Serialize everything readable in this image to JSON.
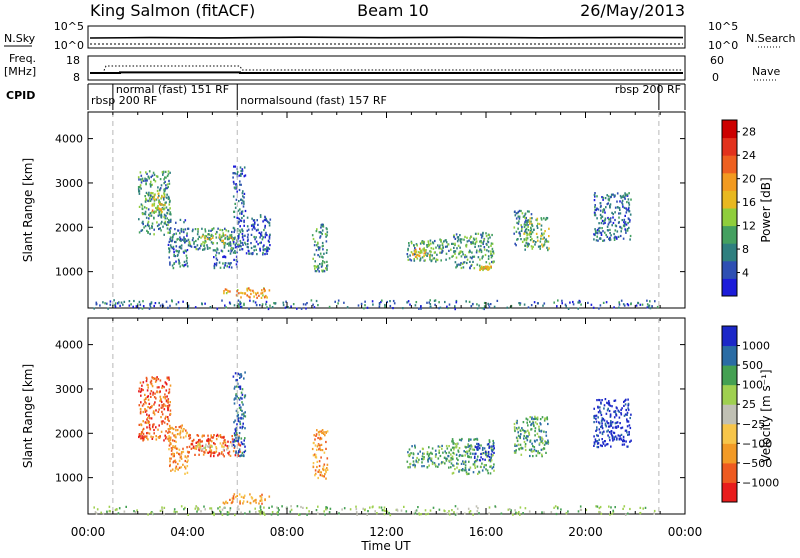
{
  "header": {
    "station": "King Salmon (fitACF)",
    "beam": "Beam 10",
    "date": "26/May/2013"
  },
  "top_panels": {
    "nsky_label": "N.Sky",
    "nsky_ticks": [
      "10^5",
      "10^0"
    ],
    "nsearch_label": "N.Search",
    "nsearch_ticks": [
      "10^5",
      "10^0"
    ],
    "freq_label_1": "Freq.",
    "freq_label_2": "[MHz]",
    "freq_ticks": [
      "18",
      "8"
    ],
    "nave_label": "Nave",
    "nave_ticks": [
      "60",
      "0"
    ],
    "cpid_label": "CPID",
    "cpid_segments": [
      {
        "label": "rbsp 200 RF",
        "start_h": 0.0,
        "end_h": 1.0,
        "row": 1
      },
      {
        "label": "normal (fast) 151 RF",
        "start_h": 1.0,
        "end_h": 6.0,
        "row": 0
      },
      {
        "label": "normalsound (fast) 157 RF",
        "start_h": 6.0,
        "end_h": 22.95,
        "row": 1
      },
      {
        "label": "rbsp 200 RF",
        "start_h": 22.95,
        "end_h": 24.0,
        "row": 0,
        "align": "right"
      }
    ]
  },
  "chart_data": [
    {
      "type": "heatmap",
      "title": "",
      "xlabel": "",
      "ylabel": "Slant Range [km]",
      "xlim": [
        0,
        24
      ],
      "ylim": [
        180,
        4600
      ],
      "y_ticks": [
        1000,
        2000,
        3000,
        4000
      ],
      "colorbar_label": "Power [dB]",
      "colorbar_ticks": [
        "4",
        "8",
        "12",
        "16",
        "20",
        "24",
        "28"
      ],
      "colorbar_range": [
        0,
        30
      ],
      "colors": [
        "#1c1cd9",
        "#2e4fb3",
        "#2f7f7f",
        "#44a060",
        "#8fce3c",
        "#e8b820",
        "#f29a20",
        "#ee6020",
        "#e2321d",
        "#cc0000"
      ],
      "echo_regions": [
        {
          "t": [
            2.0,
            3.3
          ],
          "r": [
            1850,
            3300
          ],
          "v": 9
        },
        {
          "t": [
            2.5,
            3.1
          ],
          "r": [
            2300,
            2800
          ],
          "v": 17
        },
        {
          "t": [
            3.2,
            4.0
          ],
          "r": [
            1100,
            2200
          ],
          "v": 7
        },
        {
          "t": [
            4.0,
            6.1
          ],
          "r": [
            1500,
            2000
          ],
          "v": 9
        },
        {
          "t": [
            4.5,
            5.8
          ],
          "r": [
            1650,
            1850
          ],
          "v": 15
        },
        {
          "t": [
            5.0,
            6.0
          ],
          "r": [
            1100,
            1500
          ],
          "v": 6
        },
        {
          "t": [
            5.4,
            7.3
          ],
          "r": [
            430,
            650
          ],
          "v": 19
        },
        {
          "t": [
            5.8,
            6.3
          ],
          "r": [
            1500,
            3400
          ],
          "v": 5
        },
        {
          "t": [
            6.3,
            7.3
          ],
          "r": [
            1400,
            2300
          ],
          "v": 5
        },
        {
          "t": [
            9.0,
            9.6
          ],
          "r": [
            1000,
            2100
          ],
          "v": 9
        },
        {
          "t": [
            12.8,
            14.6
          ],
          "r": [
            1250,
            1750
          ],
          "v": 10
        },
        {
          "t": [
            13.0,
            13.8
          ],
          "r": [
            1350,
            1550
          ],
          "v": 17
        },
        {
          "t": [
            14.6,
            16.3
          ],
          "r": [
            1100,
            1900
          ],
          "v": 9
        },
        {
          "t": [
            15.7,
            16.2
          ],
          "r": [
            1050,
            1150
          ],
          "v": 18
        },
        {
          "t": [
            17.1,
            17.8
          ],
          "r": [
            1600,
            2400
          ],
          "v": 8
        },
        {
          "t": [
            17.5,
            18.5
          ],
          "r": [
            1500,
            2250
          ],
          "v": 12
        },
        {
          "t": [
            20.3,
            21.8
          ],
          "r": [
            1700,
            2800
          ],
          "v": 6
        },
        {
          "t": [
            0.2,
            22.9
          ],
          "r": [
            180,
            380
          ],
          "v": 6
        }
      ]
    },
    {
      "type": "heatmap",
      "title": "",
      "xlabel": "Time UT",
      "ylabel": "Slant Range [km]",
      "x_ticks": [
        "00:00",
        "04:00",
        "08:00",
        "12:00",
        "16:00",
        "20:00",
        "00:00"
      ],
      "xlim": [
        0,
        24
      ],
      "ylim": [
        180,
        4600
      ],
      "y_ticks": [
        1000,
        2000,
        3000,
        4000
      ],
      "colorbar_label": "Velocity [m s⁻¹]",
      "colorbar_ticks": [
        "1000",
        "500",
        "100",
        "25",
        "−25",
        "−100",
        "−500",
        "−1000"
      ],
      "colors": [
        "#e81c1c",
        "#ee5a20",
        "#f29a26",
        "#f7c54a",
        "#c0c0b4",
        "#9fd050",
        "#44a052",
        "#2a6ca4",
        "#1c28c8"
      ],
      "echo_regions": [
        {
          "t": [
            2.0,
            3.3
          ],
          "r": [
            1850,
            3300
          ],
          "v": 1
        },
        {
          "t": [
            3.2,
            4.0
          ],
          "r": [
            1100,
            2200
          ],
          "v": 2
        },
        {
          "t": [
            4.0,
            6.1
          ],
          "r": [
            1500,
            2000
          ],
          "v": 1
        },
        {
          "t": [
            4.2,
            5.8
          ],
          "r": [
            1650,
            1800
          ],
          "v": 4
        },
        {
          "t": [
            5.4,
            7.3
          ],
          "r": [
            430,
            650
          ],
          "v": 2
        },
        {
          "t": [
            5.8,
            6.3
          ],
          "r": [
            1500,
            3400
          ],
          "v": 7
        },
        {
          "t": [
            9.0,
            9.6
          ],
          "r": [
            1000,
            2100
          ],
          "v": 2
        },
        {
          "t": [
            12.8,
            14.6
          ],
          "r": [
            1250,
            1750
          ],
          "v": 6
        },
        {
          "t": [
            14.6,
            16.3
          ],
          "r": [
            1100,
            1900
          ],
          "v": 6
        },
        {
          "t": [
            15.5,
            16.3
          ],
          "r": [
            1400,
            1800
          ],
          "v": 8
        },
        {
          "t": [
            17.1,
            18.5
          ],
          "r": [
            1500,
            2400
          ],
          "v": 6
        },
        {
          "t": [
            20.3,
            21.8
          ],
          "r": [
            1700,
            2800
          ],
          "v": 8
        },
        {
          "t": [
            0.2,
            22.9
          ],
          "r": [
            180,
            380
          ],
          "v": 5
        }
      ]
    }
  ]
}
